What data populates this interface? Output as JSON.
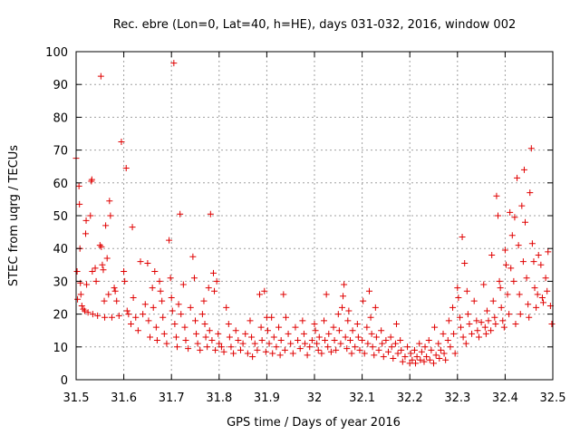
{
  "chart_data": {
    "type": "scatter",
    "title": "Rec. ebre (Lon=0, Lat=40, h=HE), days 031-032, 2016, window 002",
    "xlabel": "GPS time / Days of year 2016",
    "ylabel": "STEC from uqrg / TECUs",
    "xlim": [
      31.5,
      32.5
    ],
    "ylim": [
      0,
      100
    ],
    "xticks": [
      "31.5",
      "31.6",
      "31.7",
      "31.8",
      "31.9",
      "32",
      "32.1",
      "32.2",
      "32.3",
      "32.4",
      "32.5"
    ],
    "yticks": [
      "0",
      "10",
      "20",
      "30",
      "40",
      "50",
      "60",
      "70",
      "80",
      "90",
      "100"
    ],
    "grid": true,
    "marker": "plus",
    "color": "#e00000",
    "points": [
      [
        31.5,
        67.5
      ],
      [
        31.502,
        33
      ],
      [
        31.503,
        24.5
      ],
      [
        31.506,
        59
      ],
      [
        31.507,
        53.5
      ],
      [
        31.508,
        40
      ],
      [
        31.509,
        29.5
      ],
      [
        31.51,
        26
      ],
      [
        31.512,
        22.5
      ],
      [
        31.515,
        21.5
      ],
      [
        31.518,
        21
      ],
      [
        31.52,
        44.5
      ],
      [
        31.521,
        48.5
      ],
      [
        31.522,
        29
      ],
      [
        31.525,
        20.5
      ],
      [
        31.53,
        50
      ],
      [
        31.532,
        60.5
      ],
      [
        31.533,
        61
      ],
      [
        31.534,
        33
      ],
      [
        31.535,
        20
      ],
      [
        31.54,
        34
      ],
      [
        31.542,
        30
      ],
      [
        31.545,
        19.5
      ],
      [
        31.55,
        41
      ],
      [
        31.552,
        92.5
      ],
      [
        31.553,
        40.5
      ],
      [
        31.555,
        35
      ],
      [
        31.557,
        33.5
      ],
      [
        31.559,
        24
      ],
      [
        31.56,
        19
      ],
      [
        31.562,
        47
      ],
      [
        31.565,
        37
      ],
      [
        31.568,
        26
      ],
      [
        31.57,
        54.5
      ],
      [
        31.572,
        50
      ],
      [
        31.575,
        19
      ],
      [
        31.58,
        28
      ],
      [
        31.582,
        27
      ],
      [
        31.585,
        24
      ],
      [
        31.59,
        19.5
      ],
      [
        31.595,
        72.5
      ],
      [
        31.6,
        33
      ],
      [
        31.602,
        30
      ],
      [
        31.605,
        64.5
      ],
      [
        31.607,
        21
      ],
      [
        31.61,
        20
      ],
      [
        31.615,
        17
      ],
      [
        31.618,
        46.5
      ],
      [
        31.62,
        25
      ],
      [
        31.625,
        19
      ],
      [
        31.63,
        15
      ],
      [
        31.635,
        36
      ],
      [
        31.64,
        20
      ],
      [
        31.645,
        23
      ],
      [
        31.65,
        35.5
      ],
      [
        31.652,
        18
      ],
      [
        31.655,
        13
      ],
      [
        31.66,
        28
      ],
      [
        31.662,
        22
      ],
      [
        31.665,
        33
      ],
      [
        31.668,
        16
      ],
      [
        31.67,
        12
      ],
      [
        31.675,
        30
      ],
      [
        31.677,
        27
      ],
      [
        31.68,
        24
      ],
      [
        31.682,
        19
      ],
      [
        31.685,
        14
      ],
      [
        31.69,
        11
      ],
      [
        31.695,
        42.5
      ],
      [
        31.698,
        31
      ],
      [
        31.7,
        25
      ],
      [
        31.702,
        21
      ],
      [
        31.705,
        96.5
      ],
      [
        31.707,
        17
      ],
      [
        31.71,
        13
      ],
      [
        31.712,
        10
      ],
      [
        31.715,
        23
      ],
      [
        31.718,
        50.5
      ],
      [
        31.72,
        20
      ],
      [
        31.725,
        29
      ],
      [
        31.728,
        16
      ],
      [
        31.73,
        12
      ],
      [
        31.735,
        9.5
      ],
      [
        31.74,
        22
      ],
      [
        31.745,
        37.5
      ],
      [
        31.748,
        31
      ],
      [
        31.75,
        18
      ],
      [
        31.752,
        14
      ],
      [
        31.755,
        11
      ],
      [
        31.76,
        9
      ],
      [
        31.765,
        20
      ],
      [
        31.768,
        24
      ],
      [
        31.77,
        17
      ],
      [
        31.772,
        13
      ],
      [
        31.775,
        10
      ],
      [
        31.778,
        28
      ],
      [
        31.78,
        15
      ],
      [
        31.782,
        50.5
      ],
      [
        31.785,
        12
      ],
      [
        31.788,
        32.5
      ],
      [
        31.79,
        27
      ],
      [
        31.792,
        9
      ],
      [
        31.795,
        30
      ],
      [
        31.798,
        14
      ],
      [
        31.8,
        11
      ],
      [
        31.805,
        10
      ],
      [
        31.81,
        8.5
      ],
      [
        31.815,
        22
      ],
      [
        31.82,
        17
      ],
      [
        31.822,
        13
      ],
      [
        31.825,
        10
      ],
      [
        31.83,
        8
      ],
      [
        31.835,
        15
      ],
      [
        31.84,
        12
      ],
      [
        31.845,
        9
      ],
      [
        31.85,
        11
      ],
      [
        31.855,
        14
      ],
      [
        31.86,
        8
      ],
      [
        31.865,
        18
      ],
      [
        31.868,
        13
      ],
      [
        31.87,
        7
      ],
      [
        31.875,
        11
      ],
      [
        31.88,
        9
      ],
      [
        31.885,
        26
      ],
      [
        31.888,
        16
      ],
      [
        31.89,
        12
      ],
      [
        31.895,
        27
      ],
      [
        31.898,
        8.5
      ],
      [
        31.9,
        19
      ],
      [
        31.902,
        15
      ],
      [
        31.905,
        11
      ],
      [
        31.91,
        19
      ],
      [
        31.912,
        8
      ],
      [
        31.915,
        13
      ],
      [
        31.92,
        10
      ],
      [
        31.925,
        16
      ],
      [
        31.928,
        7.5
      ],
      [
        31.93,
        12
      ],
      [
        31.935,
        26
      ],
      [
        31.938,
        9
      ],
      [
        31.94,
        19
      ],
      [
        31.945,
        14
      ],
      [
        31.95,
        11
      ],
      [
        31.955,
        8
      ],
      [
        31.96,
        16
      ],
      [
        31.965,
        12
      ],
      [
        31.97,
        9.5
      ],
      [
        31.975,
        18
      ],
      [
        31.978,
        14
      ],
      [
        31.98,
        11
      ],
      [
        31.985,
        7.5
      ],
      [
        31.99,
        10
      ],
      [
        31.995,
        12
      ],
      [
        32.0,
        17
      ],
      [
        32.002,
        15
      ],
      [
        32.005,
        11
      ],
      [
        32.008,
        9
      ],
      [
        32.01,
        13
      ],
      [
        32.015,
        8
      ],
      [
        32.02,
        18
      ],
      [
        32.022,
        12
      ],
      [
        32.025,
        26
      ],
      [
        32.028,
        10
      ],
      [
        32.03,
        14
      ],
      [
        32.035,
        8.5
      ],
      [
        32.04,
        16
      ],
      [
        32.042,
        12
      ],
      [
        32.045,
        9
      ],
      [
        32.05,
        20
      ],
      [
        32.052,
        15
      ],
      [
        32.055,
        11
      ],
      [
        32.058,
        22
      ],
      [
        32.06,
        25.5
      ],
      [
        32.062,
        29
      ],
      [
        32.065,
        13
      ],
      [
        32.068,
        9.5
      ],
      [
        32.07,
        18
      ],
      [
        32.072,
        21
      ],
      [
        32.075,
        12
      ],
      [
        32.078,
        8
      ],
      [
        32.08,
        15
      ],
      [
        32.085,
        10
      ],
      [
        32.09,
        17
      ],
      [
        32.092,
        13
      ],
      [
        32.095,
        9
      ],
      [
        32.1,
        12
      ],
      [
        32.102,
        24
      ],
      [
        32.105,
        8
      ],
      [
        32.11,
        16
      ],
      [
        32.112,
        11
      ],
      [
        32.115,
        27
      ],
      [
        32.118,
        19
      ],
      [
        32.12,
        14
      ],
      [
        32.122,
        10
      ],
      [
        32.125,
        7.5
      ],
      [
        32.128,
        22
      ],
      [
        32.13,
        13
      ],
      [
        32.135,
        9
      ],
      [
        32.14,
        15
      ],
      [
        32.142,
        11
      ],
      [
        32.145,
        7
      ],
      [
        32.15,
        12
      ],
      [
        32.155,
        8.5
      ],
      [
        32.16,
        13
      ],
      [
        32.162,
        10
      ],
      [
        32.165,
        6.5
      ],
      [
        32.17,
        11
      ],
      [
        32.172,
        17
      ],
      [
        32.175,
        8
      ],
      [
        32.18,
        12
      ],
      [
        32.182,
        9
      ],
      [
        32.185,
        5.5
      ],
      [
        32.19,
        7
      ],
      [
        32.195,
        10
      ],
      [
        32.2,
        5
      ],
      [
        32.202,
        8
      ],
      [
        32.205,
        6
      ],
      [
        32.21,
        9
      ],
      [
        32.212,
        5
      ],
      [
        32.215,
        7
      ],
      [
        32.22,
        11
      ],
      [
        32.222,
        6
      ],
      [
        32.225,
        8.5
      ],
      [
        32.23,
        5.5
      ],
      [
        32.232,
        10
      ],
      [
        32.235,
        7
      ],
      [
        32.24,
        12
      ],
      [
        32.242,
        6
      ],
      [
        32.245,
        9
      ],
      [
        32.25,
        5
      ],
      [
        32.252,
        16
      ],
      [
        32.255,
        7.5
      ],
      [
        32.26,
        11
      ],
      [
        32.262,
        6.5
      ],
      [
        32.265,
        9
      ],
      [
        32.27,
        14
      ],
      [
        32.272,
        8
      ],
      [
        32.275,
        6
      ],
      [
        32.28,
        12
      ],
      [
        32.282,
        18
      ],
      [
        32.285,
        10
      ],
      [
        32.29,
        22
      ],
      [
        32.292,
        14
      ],
      [
        32.295,
        8
      ],
      [
        32.3,
        28
      ],
      [
        32.302,
        25
      ],
      [
        32.305,
        19
      ],
      [
        32.307,
        16
      ],
      [
        32.31,
        43.5
      ],
      [
        32.312,
        13
      ],
      [
        32.315,
        35.5
      ],
      [
        32.318,
        11
      ],
      [
        32.32,
        27
      ],
      [
        32.322,
        20
      ],
      [
        32.325,
        17
      ],
      [
        32.33,
        14
      ],
      [
        32.335,
        24
      ],
      [
        32.34,
        18
      ],
      [
        32.342,
        15
      ],
      [
        32.345,
        13
      ],
      [
        32.35,
        17.5
      ],
      [
        32.355,
        29
      ],
      [
        32.358,
        16
      ],
      [
        32.36,
        14
      ],
      [
        32.362,
        21
      ],
      [
        32.365,
        18
      ],
      [
        32.37,
        15
      ],
      [
        32.372,
        38
      ],
      [
        32.375,
        24
      ],
      [
        32.378,
        19
      ],
      [
        32.38,
        17
      ],
      [
        32.382,
        56
      ],
      [
        32.385,
        50
      ],
      [
        32.388,
        30
      ],
      [
        32.39,
        28
      ],
      [
        32.392,
        22
      ],
      [
        32.395,
        18
      ],
      [
        32.398,
        16
      ],
      [
        32.4,
        39.5
      ],
      [
        32.402,
        35
      ],
      [
        32.405,
        26
      ],
      [
        32.408,
        20
      ],
      [
        32.41,
        51
      ],
      [
        32.412,
        34
      ],
      [
        32.415,
        44
      ],
      [
        32.418,
        30
      ],
      [
        32.42,
        49.5
      ],
      [
        32.422,
        17
      ],
      [
        32.425,
        61.5
      ],
      [
        32.428,
        41
      ],
      [
        32.43,
        26
      ],
      [
        32.432,
        20
      ],
      [
        32.435,
        53
      ],
      [
        32.438,
        36
      ],
      [
        32.44,
        64
      ],
      [
        32.442,
        48
      ],
      [
        32.445,
        31
      ],
      [
        32.448,
        23
      ],
      [
        32.45,
        19
      ],
      [
        32.452,
        57
      ],
      [
        32.455,
        70.5
      ],
      [
        32.457,
        41.5
      ],
      [
        32.46,
        36
      ],
      [
        32.462,
        28
      ],
      [
        32.465,
        22
      ],
      [
        32.468,
        26
      ],
      [
        32.47,
        38
      ],
      [
        32.475,
        35
      ],
      [
        32.478,
        25
      ],
      [
        32.48,
        23.5
      ],
      [
        32.485,
        31
      ],
      [
        32.488,
        27
      ],
      [
        32.49,
        39
      ],
      [
        32.495,
        22.5
      ],
      [
        32.498,
        17
      ]
    ]
  }
}
